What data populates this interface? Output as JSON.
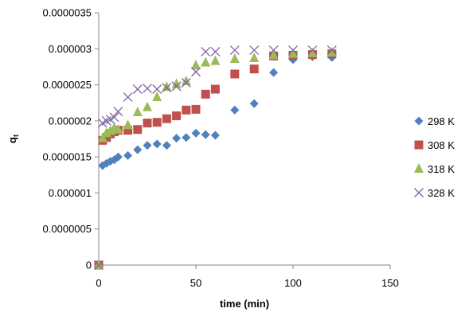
{
  "chart_data": {
    "type": "scatter",
    "xlabel": "time (min)",
    "ylabel": "qt",
    "xlim": [
      0,
      150
    ],
    "ylim": [
      0,
      3.5e-06
    ],
    "x_ticks": [
      {
        "value": 0,
        "label": "0"
      },
      {
        "value": 50,
        "label": "50"
      },
      {
        "value": 100,
        "label": "100"
      },
      {
        "value": 150,
        "label": "150"
      }
    ],
    "y_ticks": [
      {
        "value": 0,
        "label": "0"
      },
      {
        "value": 5e-07,
        "label": "0.0000005"
      },
      {
        "value": 1e-06,
        "label": "0.000001"
      },
      {
        "value": 1.5e-06,
        "label": "0.0000015"
      },
      {
        "value": 2e-06,
        "label": "0.000002"
      },
      {
        "value": 2.5e-06,
        "label": "0.0000025"
      },
      {
        "value": 3e-06,
        "label": "0.000003"
      },
      {
        "value": 3.5e-06,
        "label": "0.0000035"
      }
    ],
    "grid": false,
    "legend_position": "right",
    "series": [
      {
        "name": "298 K",
        "marker": "diamond",
        "color": "#4F81BD",
        "points": [
          [
            0,
            0
          ],
          [
            2,
            1.38e-06
          ],
          [
            4,
            1.41e-06
          ],
          [
            6,
            1.44e-06
          ],
          [
            8,
            1.46e-06
          ],
          [
            10,
            1.5e-06
          ],
          [
            15,
            1.52e-06
          ],
          [
            20,
            1.6e-06
          ],
          [
            25,
            1.66e-06
          ],
          [
            30,
            1.68e-06
          ],
          [
            35,
            1.66e-06
          ],
          [
            40,
            1.76e-06
          ],
          [
            45,
            1.77e-06
          ],
          [
            50,
            1.83e-06
          ],
          [
            55,
            1.81e-06
          ],
          [
            60,
            1.8e-06
          ],
          [
            70,
            2.15e-06
          ],
          [
            80,
            2.24e-06
          ],
          [
            90,
            2.67e-06
          ],
          [
            100,
            2.85e-06
          ],
          [
            110,
            2.89e-06
          ],
          [
            120,
            2.88e-06
          ]
        ]
      },
      {
        "name": "308 K",
        "marker": "square",
        "color": "#C0504D",
        "points": [
          [
            0,
            0
          ],
          [
            2,
            1.73e-06
          ],
          [
            4,
            1.77e-06
          ],
          [
            6,
            1.82e-06
          ],
          [
            8,
            1.85e-06
          ],
          [
            10,
            1.87e-06
          ],
          [
            15,
            1.87e-06
          ],
          [
            20,
            1.88e-06
          ],
          [
            25,
            1.97e-06
          ],
          [
            30,
            1.98e-06
          ],
          [
            35,
            2.03e-06
          ],
          [
            40,
            2.07e-06
          ],
          [
            45,
            2.15e-06
          ],
          [
            50,
            2.16e-06
          ],
          [
            55,
            2.37e-06
          ],
          [
            60,
            2.44e-06
          ],
          [
            70,
            2.65e-06
          ],
          [
            80,
            2.72e-06
          ],
          [
            90,
            2.9e-06
          ],
          [
            100,
            2.91e-06
          ],
          [
            110,
            2.92e-06
          ],
          [
            120,
            2.93e-06
          ]
        ]
      },
      {
        "name": "318 K",
        "marker": "triangle",
        "color": "#9BBB59",
        "points": [
          [
            0,
            0
          ],
          [
            2,
            1.76e-06
          ],
          [
            4,
            1.83e-06
          ],
          [
            6,
            1.86e-06
          ],
          [
            8,
            1.9e-06
          ],
          [
            10,
            1.88e-06
          ],
          [
            15,
            1.94e-06
          ],
          [
            20,
            2.12e-06
          ],
          [
            25,
            2.19e-06
          ],
          [
            30,
            2.33e-06
          ],
          [
            35,
            2.47e-06
          ],
          [
            40,
            2.51e-06
          ],
          [
            45,
            2.55e-06
          ],
          [
            50,
            2.77e-06
          ],
          [
            55,
            2.81e-06
          ],
          [
            60,
            2.83e-06
          ],
          [
            70,
            2.86e-06
          ],
          [
            80,
            2.87e-06
          ],
          [
            90,
            2.91e-06
          ],
          [
            100,
            2.93e-06
          ],
          [
            110,
            2.94e-06
          ],
          [
            120,
            2.95e-06
          ]
        ]
      },
      {
        "name": "328 K",
        "marker": "x",
        "color": "#8064A2",
        "points": [
          [
            0,
            0
          ],
          [
            2,
            1.97e-06
          ],
          [
            4,
            2e-06
          ],
          [
            6,
            2.02e-06
          ],
          [
            8,
            2.05e-06
          ],
          [
            10,
            2.13e-06
          ],
          [
            15,
            2.33e-06
          ],
          [
            20,
            2.44e-06
          ],
          [
            25,
            2.45e-06
          ],
          [
            30,
            2.44e-06
          ],
          [
            35,
            2.46e-06
          ],
          [
            40,
            2.48e-06
          ],
          [
            45,
            2.53e-06
          ],
          [
            50,
            2.68e-06
          ],
          [
            55,
            2.96e-06
          ],
          [
            60,
            2.96e-06
          ],
          [
            70,
            2.98e-06
          ],
          [
            80,
            2.98e-06
          ],
          [
            90,
            2.98e-06
          ],
          [
            100,
            2.98e-06
          ],
          [
            110,
            2.98e-06
          ],
          [
            120,
            2.98e-06
          ]
        ]
      }
    ]
  }
}
